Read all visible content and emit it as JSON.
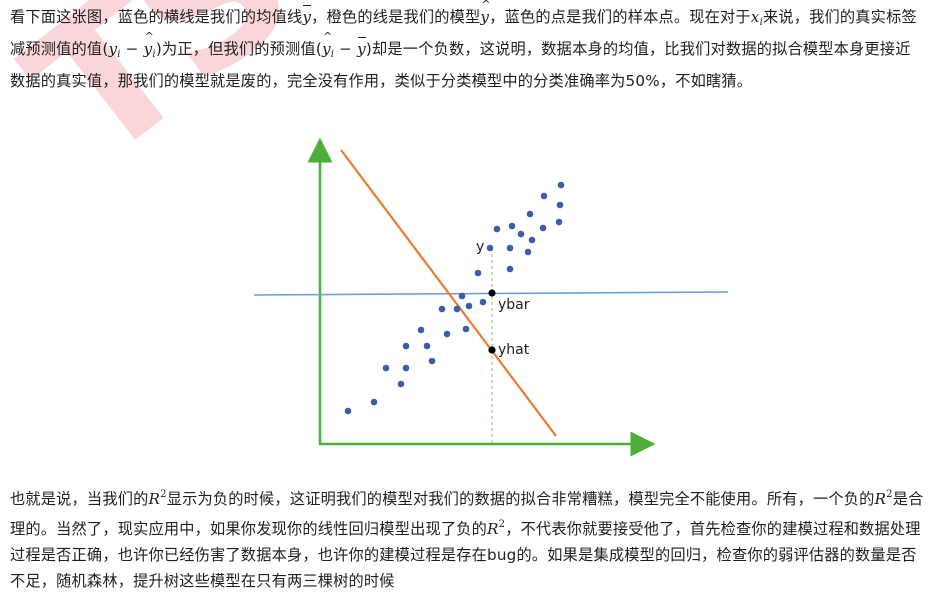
{
  "watermark_text": "TSQ",
  "paragraph1": {
    "t1": "看下面这张图，蓝色的横线是我们的均值线",
    "ybar1": "y",
    "t2": "，橙色的线是我们的模型",
    "yhat1": "y",
    "t3": "，蓝色的点是我们的样本点。现在对于",
    "xi_base": "x",
    "xi_sub": "i",
    "t4": "来说，我们的真实标签减预测值的值(",
    "m1a": "y",
    "m1sub": "i",
    "m1op": " − ",
    "m1b": "y",
    "m1bsub": "i",
    "t5": ")为正，但我们的预测值(",
    "m2a": "y",
    "m2asub": "i",
    "m2op": " − ",
    "m2b": "y",
    "t6": ")却是一个负数，这说明，数据本身的均值，比我们对数据的拟合模型本身更接近数据的真实值，那我们的模型就是废的，完全没有作用，类似于分类模型中的分类准确率为50%，不如瞎猜。"
  },
  "paragraph2": {
    "t1": "也就是说，当我们的",
    "r2a": "R",
    "sup": "2",
    "t2": "显示为负的时候，这证明我们的模型对我们的数据的拟合非常糟糕，模型完全不能使用。所有，一个负的",
    "r2b": "R",
    "t3": "是合理的。当然了，现实应用中，如果你发现你的线性回归模型出现了负的",
    "r2c": "R",
    "t4": "，不代表你就要接受他了，首先检查你的建模过程和数据处理过程是否正确，也许你已经伤害了数据本身，也许你的建模过程是存在bug的。如果是集成模型的回归，检查你的弱评估器的数量是否不足，随机森林，提升树这些模型在只有两三棵树的时候"
  },
  "figure": {
    "labels": {
      "y": "y",
      "ybar": "ybar",
      "yhat": "yhat"
    },
    "colors": {
      "axis": "#4caf3a",
      "mean_line": "#6a9fd8",
      "model_line": "#ec7a2e",
      "points": "#3a5fa8",
      "dashed": "#7cc36b"
    },
    "points": [
      [
        348,
        411
      ],
      [
        374,
        402
      ],
      [
        386,
        368
      ],
      [
        401,
        384
      ],
      [
        406,
        346
      ],
      [
        406,
        368
      ],
      [
        421,
        330
      ],
      [
        427,
        346
      ],
      [
        432,
        361
      ],
      [
        442,
        309
      ],
      [
        447,
        334
      ],
      [
        457,
        309
      ],
      [
        462,
        296
      ],
      [
        466,
        329
      ],
      [
        469,
        306
      ],
      [
        478,
        273
      ],
      [
        483,
        302
      ],
      [
        490,
        248
      ],
      [
        497,
        229
      ],
      [
        510,
        248
      ],
      [
        510,
        269
      ],
      [
        512,
        226
      ],
      [
        521,
        234
      ],
      [
        528,
        252
      ],
      [
        530,
        214
      ],
      [
        532,
        240
      ],
      [
        543,
        228
      ],
      [
        544,
        196
      ],
      [
        559,
        222
      ],
      [
        560,
        205
      ],
      [
        561,
        185
      ]
    ]
  }
}
